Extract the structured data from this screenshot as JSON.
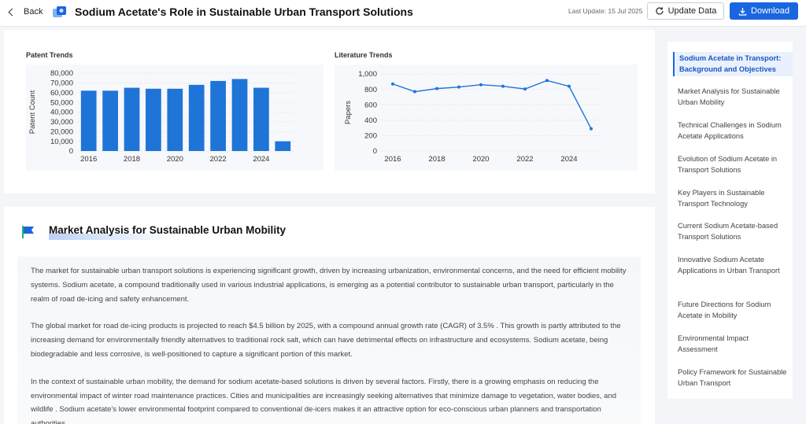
{
  "header": {
    "back_label": "Back",
    "title": "Sodium Acetate's Role in Sustainable Urban Transport Solutions",
    "last_update": "Last Update: 15 Jul 2025",
    "update_button": "Update Data",
    "download_button": "Download",
    "accent_color": "#1a66e0"
  },
  "patent_chart_title": "Patent Trends",
  "literature_chart_title": "Literature Trends",
  "chart_data": [
    {
      "type": "bar",
      "title": "Patent Trends",
      "xlabel": "",
      "ylabel": "Patent Count",
      "categories": [
        "2016",
        "2017",
        "2018",
        "2019",
        "2020",
        "2021",
        "2022",
        "2023",
        "2024",
        "2025"
      ],
      "values": [
        62000,
        62000,
        65000,
        64000,
        64000,
        68000,
        72000,
        74000,
        65000,
        10000
      ],
      "ylim": [
        0,
        80000
      ],
      "yticks": [
        "0",
        "10,000",
        "20,000",
        "30,000",
        "40,000",
        "50,000",
        "60,000",
        "70,000",
        "80,000"
      ],
      "xticks": [
        "2016",
        "2018",
        "2020",
        "2022",
        "2024"
      ],
      "grid": true,
      "color": "#1f74d8"
    },
    {
      "type": "line",
      "title": "Literature Trends",
      "xlabel": "",
      "ylabel": "Papers",
      "x": [
        "2016",
        "2017",
        "2018",
        "2019",
        "2020",
        "2021",
        "2022",
        "2023",
        "2024",
        "2025"
      ],
      "values": [
        870,
        770,
        810,
        830,
        860,
        840,
        805,
        915,
        840,
        290
      ],
      "ylim": [
        0,
        1000
      ],
      "yticks": [
        "0",
        "200",
        "400",
        "600",
        "800",
        "1,000"
      ],
      "xticks": [
        "2016",
        "2018",
        "2020",
        "2022",
        "2024"
      ],
      "grid": true,
      "color": "#1f74d8"
    }
  ],
  "market": {
    "title": "Market Analysis for Sustainable Urban Mobility",
    "paragraphs": [
      "The market for sustainable urban transport solutions is experiencing significant growth, driven by increasing urbanization, environmental concerns, and the need for efficient mobility systems. Sodium acetate, a compound traditionally used in various industrial applications, is emerging as a potential contributor to sustainable urban transport, particularly in the realm of road de-icing and safety enhancement.",
      "The global market for road de-icing products is projected to reach $4.5 billion by 2025, with a compound annual growth rate (CAGR) of 3.5% . This growth is partly attributed to the increasing demand for environmentally friendly alternatives to traditional rock salt, which can have detrimental effects on infrastructure and ecosystems. Sodium acetate, being biodegradable and less corrosive, is well-positioned to capture a significant portion of this market.",
      "In the context of sustainable urban mobility, the demand for sodium acetate-based solutions is driven by several factors. Firstly, there is a growing emphasis on reducing the environmental impact of winter road maintenance practices. Cities and municipalities are increasingly seeking alternatives that minimize damage to vegetation, water bodies, and wildlife . Sodium acetate's lower environmental footprint compared to conventional de-icers makes it an attractive option for eco-conscious urban planners and transportation authorities."
    ]
  },
  "toc": [
    {
      "label": "Sodium Acetate in Transport: Background and Objectives",
      "active": true
    },
    {
      "label": "Market Analysis for Sustainable Urban Mobility"
    },
    {
      "label": "Technical Challenges in Sodium Acetate Applications"
    },
    {
      "label": "Evolution of Sodium Acetate in Transport Solutions"
    },
    {
      "label": "Key Players in Sustainable Transport Technology"
    },
    {
      "label": "Current Sodium Acetate-based Transport Solutions"
    },
    {
      "label": "Innovative Sodium Acetate Applications in Urban Transport"
    },
    {
      "label": "Future Directions for Sodium Acetate in Mobility"
    },
    {
      "label": "Environmental Impact Assessment"
    },
    {
      "label": "Policy Framework for Sustainable Urban Transport"
    }
  ]
}
